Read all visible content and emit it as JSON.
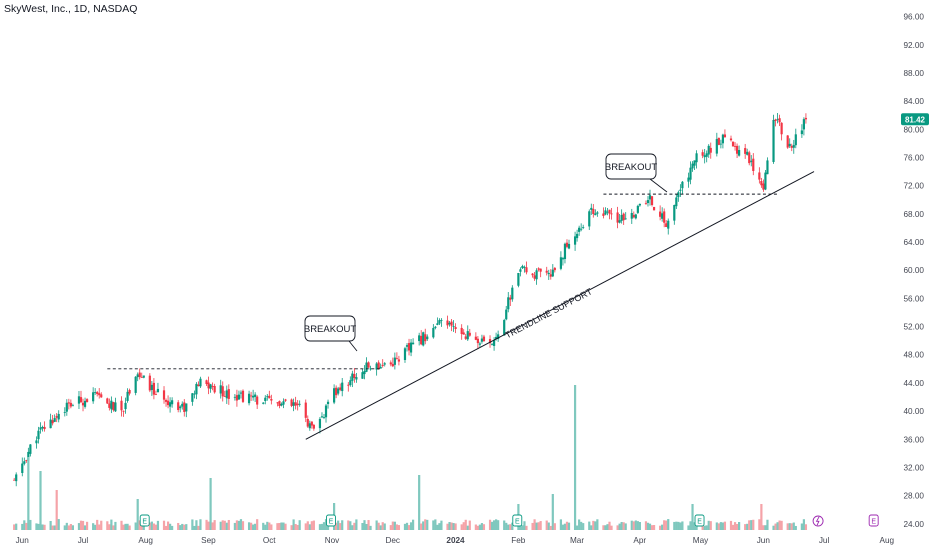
{
  "header": {
    "title": "SkyWest, Inc., 1D, NASDAQ"
  },
  "price_badge": {
    "value": "81.42",
    "color": "#089981"
  },
  "colors": {
    "up": "#089981",
    "down": "#f23645",
    "vol_up": "#7fc8be",
    "vol_down": "#f5a3a8",
    "text": "#131722",
    "axis": "#434651"
  },
  "annotations": {
    "breakout_1": "BREAKOUT",
    "breakout_2": "BREAKOUT",
    "trendline": "TRENDLINE SUPPORT"
  },
  "chart_data": {
    "type": "candlestick",
    "title": "SkyWest, Inc., 1D, NASDAQ",
    "y_axis": {
      "ticks": [
        "24.00",
        "28.00",
        "32.00",
        "36.00",
        "40.00",
        "44.00",
        "48.00",
        "52.00",
        "56.00",
        "60.00",
        "64.00",
        "68.00",
        "72.00",
        "76.00",
        "80.00",
        "84.00",
        "88.00",
        "92.00",
        "96.00"
      ],
      "range": [
        23.2,
        97.0
      ],
      "position": "right"
    },
    "x_axis": {
      "ticks": [
        "Jun",
        "Jul",
        "Aug",
        "Sep",
        "Oct",
        "Nov",
        "Dec",
        "2024",
        "Feb",
        "Mar",
        "Apr",
        "May",
        "Jun",
        "Jul",
        "Aug"
      ]
    },
    "last_price": 81.42,
    "price_path": [
      [
        "2023-06-01",
        30.0
      ],
      [
        "2023-06-12",
        36.5
      ],
      [
        "2023-06-26",
        40.5
      ],
      [
        "2023-07-10",
        42.2
      ],
      [
        "2023-07-24",
        40.0
      ],
      [
        "2023-07-31",
        45.5
      ],
      [
        "2023-08-10",
        42.5
      ],
      [
        "2023-08-24",
        40.5
      ],
      [
        "2023-09-01",
        44.0
      ],
      [
        "2023-09-15",
        42.5
      ],
      [
        "2023-10-01",
        41.5
      ],
      [
        "2023-10-20",
        40.5
      ],
      [
        "2023-10-27",
        36.8
      ],
      [
        "2023-11-06",
        42.5
      ],
      [
        "2023-11-16",
        45.0
      ],
      [
        "2023-11-23",
        46.3
      ],
      [
        "2023-12-05",
        47.0
      ],
      [
        "2023-12-20",
        50.5
      ],
      [
        "2023-12-29",
        52.5
      ],
      [
        "2024-01-10",
        51.0
      ],
      [
        "2024-01-22",
        49.0
      ],
      [
        "2024-01-29",
        53.5
      ],
      [
        "2024-02-05",
        60.0
      ],
      [
        "2024-02-20",
        59.0
      ],
      [
        "2024-03-01",
        64.0
      ],
      [
        "2024-03-13",
        68.5
      ],
      [
        "2024-03-28",
        67.0
      ],
      [
        "2024-04-10",
        70.0
      ],
      [
        "2024-04-18",
        66.5
      ],
      [
        "2024-04-26",
        72.0
      ],
      [
        "2024-05-03",
        76.0
      ],
      [
        "2024-05-16",
        78.5
      ],
      [
        "2024-05-28",
        76.5
      ],
      [
        "2024-06-05",
        72.0
      ],
      [
        "2024-06-10",
        82.0
      ],
      [
        "2024-06-18",
        77.5
      ],
      [
        "2024-06-26",
        81.42
      ]
    ],
    "volume_spikes": [
      [
        "2023-06-08",
        7.3
      ],
      [
        "2023-06-14",
        5.9
      ],
      [
        "2023-06-22",
        4.0
      ],
      [
        "2023-08-01",
        3.1
      ],
      [
        "2023-09-06",
        5.2
      ],
      [
        "2023-11-06",
        2.7
      ],
      [
        "2023-12-18",
        5.5
      ],
      [
        "2024-02-05",
        2.6
      ],
      [
        "2024-02-22",
        3.6
      ],
      [
        "2024-03-04",
        14.5
      ],
      [
        "2024-05-01",
        2.6
      ],
      [
        "2024-06-04",
        2.6
      ]
    ],
    "lines": {
      "resistance_1": {
        "price": 46.0,
        "from": "2023-07-17",
        "to": "2023-11-29",
        "style": "dashed"
      },
      "resistance_2": {
        "price": 70.8,
        "from": "2024-03-18",
        "to": "2024-06-12",
        "style": "dashed"
      },
      "trendline": {
        "from": [
          "2023-10-23",
          36.0
        ],
        "to": [
          "2024-06-30",
          74.0
        ]
      }
    },
    "events_icon": "earnings-icon"
  }
}
